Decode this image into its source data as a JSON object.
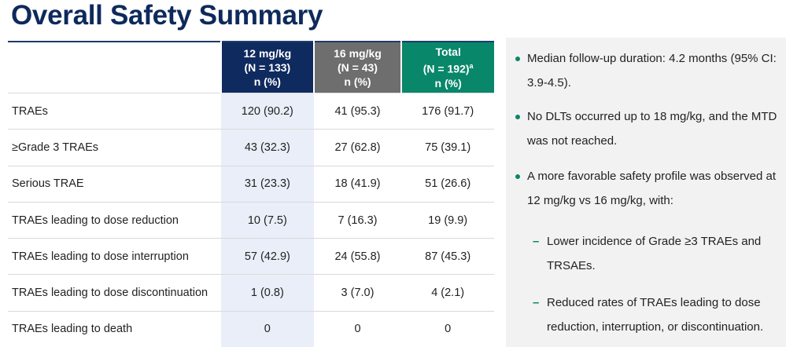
{
  "title": "Overall Safety Summary",
  "table": {
    "columns": [
      {
        "lines": [
          "12 mg/kg",
          "(N = 133)",
          "n (%)"
        ]
      },
      {
        "lines": [
          "16 mg/kg",
          "(N = 43)",
          "n (%)"
        ]
      },
      {
        "lines": [
          "Total",
          "(N = 192)",
          "n (%)"
        ],
        "superscript": "a"
      }
    ],
    "rows": [
      [
        "TRAEs",
        "120 (90.2)",
        "41 (95.3)",
        "176 (91.7)"
      ],
      [
        "≥Grade 3 TRAEs",
        "43 (32.3)",
        "27 (62.8)",
        "75 (39.1)"
      ],
      [
        "Serious TRAE",
        "31 (23.3)",
        "18 (41.9)",
        "51 (26.6)"
      ],
      [
        "TRAEs leading to dose reduction",
        "10 (7.5)",
        "7 (16.3)",
        "19 (9.9)"
      ],
      [
        "TRAEs leading to dose interruption",
        "57 (42.9)",
        "24 (55.8)",
        "87 (45.3)"
      ],
      [
        "TRAEs leading to dose discontinuation",
        "1 (0.8)",
        "3 (7.0)",
        "4 (2.1)"
      ],
      [
        "TRAEs leading to death",
        "0",
        "0",
        "0"
      ]
    ]
  },
  "bullets": [
    {
      "text": "Median follow-up duration: 4.2 months (95% CI: 3.9-4.5)."
    },
    {
      "text": "No DLTs occurred up to 18 mg/kg, and the MTD was not reached."
    },
    {
      "text": "A more favorable safety profile was observed at 12 mg/kg vs 16 mg/kg, with:",
      "subs": [
        "Lower incidence of Grade ≥3 TRAEs and TRSAEs.",
        "Reduced rates of TRAEs leading to dose reduction, interruption, or discontinuation."
      ]
    }
  ]
}
